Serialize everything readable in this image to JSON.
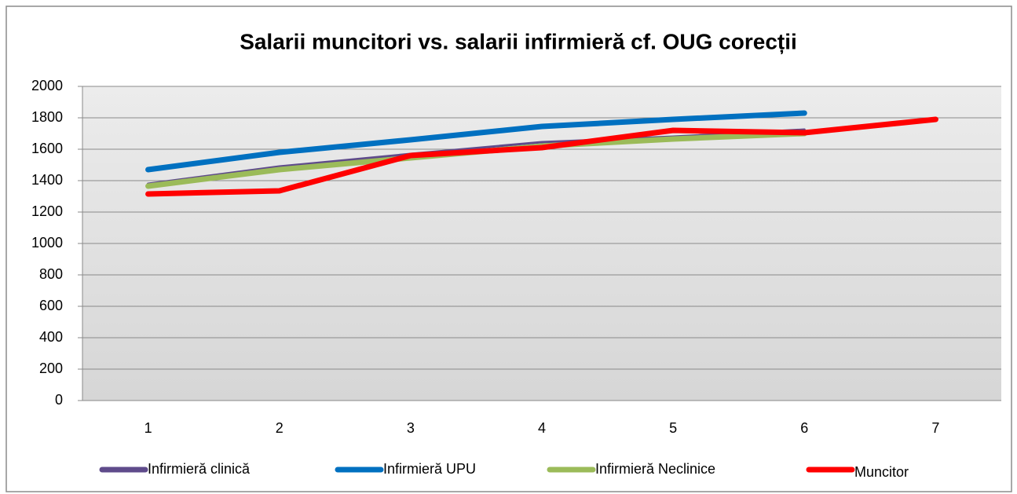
{
  "chart_data": {
    "type": "line",
    "title": "Salarii muncitori vs. salarii infirmieră cf. OUG corecții",
    "categories": [
      1,
      2,
      3,
      4,
      5,
      6,
      7
    ],
    "series": [
      {
        "name": "Infirmieră clinică",
        "color": "#5f4b8b",
        "values": [
          1380,
          1490,
          1570,
          1645,
          1680,
          1725,
          null
        ]
      },
      {
        "name": "Infirmieră UPU",
        "color": "#0070c0",
        "values": [
          1470,
          1580,
          1660,
          1745,
          1790,
          1830,
          null
        ]
      },
      {
        "name": "Infirmieră Neclinice",
        "color": "#9bbb59",
        "values": [
          1365,
          1470,
          1545,
          1620,
          1665,
          1700,
          null
        ]
      },
      {
        "name": "Muncitor",
        "color": "#ff0000",
        "values": [
          1315,
          1335,
          1560,
          1610,
          1720,
          1705,
          1790
        ]
      }
    ],
    "ylim": [
      0,
      2000
    ],
    "yticks": [
      0,
      200,
      400,
      600,
      800,
      1000,
      1200,
      1400,
      1600,
      1800,
      2000
    ],
    "grid": true,
    "legend": "bottom"
  }
}
